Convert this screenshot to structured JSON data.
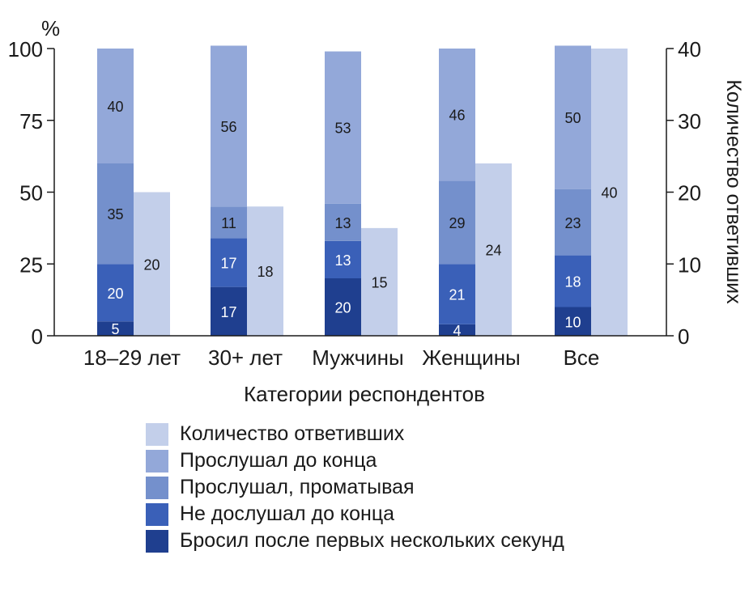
{
  "chart_data": {
    "type": "bar",
    "categories": [
      "18–29 лет",
      "30+ лет",
      "Мужчины",
      "Женщины",
      "Все"
    ],
    "xlabel": "Категории респондентов",
    "y_left": {
      "unit_label": "%",
      "range": [
        0,
        100
      ],
      "ticks": [
        "0",
        "25",
        "50",
        "75",
        "100"
      ]
    },
    "y_right": {
      "label": "Количество ответивших",
      "range": [
        0,
        40
      ],
      "ticks": [
        "0",
        "10",
        "20",
        "30",
        "40"
      ]
    },
    "stacked_series": [
      {
        "name": "Бросил после первых нескольких секунд",
        "color": "#1f3f8f",
        "values": [
          5,
          17,
          20,
          4,
          10
        ]
      },
      {
        "name": "Не дослушал до конца",
        "color": "#3a60b8",
        "values": [
          20,
          17,
          13,
          21,
          18
        ]
      },
      {
        "name": "Прослушал, проматывая",
        "color": "#7490cc",
        "values": [
          35,
          11,
          13,
          29,
          23
        ]
      },
      {
        "name": "Прослушал до конца",
        "color": "#93a8d9",
        "values": [
          40,
          56,
          53,
          46,
          50
        ]
      }
    ],
    "count_series": {
      "name": "Количество ответивших",
      "color": "#c3cfea",
      "values": [
        20,
        18,
        15,
        24,
        40
      ]
    }
  },
  "legend_order": [
    {
      "name": "Количество ответивших",
      "color": "#c3cfea"
    },
    {
      "name": "Прослушал до конца",
      "color": "#93a8d9"
    },
    {
      "name": "Прослушал, проматывая",
      "color": "#7490cc"
    },
    {
      "name": "Не дослушал до конца",
      "color": "#3a60b8"
    },
    {
      "name": "Бросил после первых нескольких секунд",
      "color": "#1f3f8f"
    }
  ]
}
